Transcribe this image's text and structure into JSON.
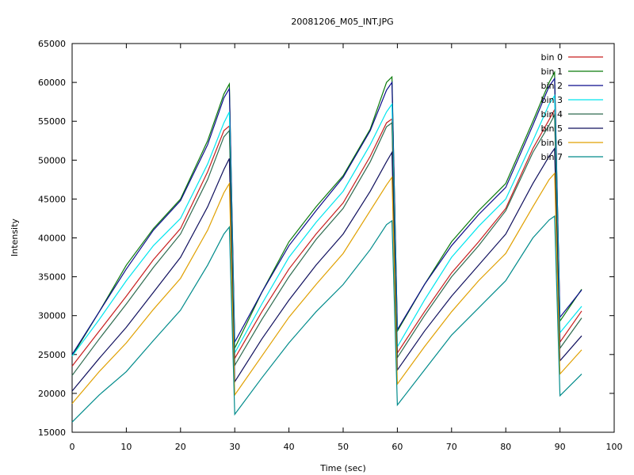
{
  "chart_data": {
    "type": "line",
    "title": "20081206_M05_INT.JPG",
    "xlabel": "Time (sec)",
    "ylabel": "Intensity",
    "xlim": [
      0,
      100
    ],
    "ylim": [
      15000,
      65000
    ],
    "x_ticks": [
      "0",
      "10",
      "20",
      "30",
      "40",
      "50",
      "60",
      "70",
      "80",
      "90",
      "100"
    ],
    "y_ticks": [
      "15000",
      "20000",
      "25000",
      "30000",
      "35000",
      "40000",
      "45000",
      "50000",
      "55000",
      "60000",
      "65000"
    ],
    "grid": false,
    "legend_position": "top-right",
    "series": [
      {
        "name": "bin 0",
        "color": "#c81e1e",
        "x": [
          0,
          5,
          10,
          15,
          20,
          25,
          28,
          29,
          30,
          35,
          40,
          45,
          50,
          55,
          58,
          59,
          60,
          65,
          70,
          75,
          80,
          85,
          88,
          89,
          90,
          94
        ],
        "values": [
          23500,
          28000,
          32500,
          37200,
          41200,
          48500,
          53800,
          54400,
          24500,
          30500,
          36000,
          40500,
          44500,
          50500,
          54800,
          55300,
          25200,
          30500,
          35500,
          39500,
          43800,
          51500,
          55200,
          56500,
          26600,
          30600
        ]
      },
      {
        "name": "bin 1",
        "color": "#0a7a0a",
        "x": [
          0,
          5,
          10,
          15,
          20,
          25,
          28,
          29,
          30,
          35,
          40,
          45,
          50,
          55,
          58,
          59,
          60,
          65,
          70,
          75,
          80,
          85,
          88,
          89,
          90,
          94
        ],
        "values": [
          24800,
          30500,
          36500,
          41200,
          45000,
          52500,
          58500,
          59800,
          25800,
          33000,
          39500,
          44000,
          48000,
          54000,
          60000,
          60700,
          28000,
          34000,
          39500,
          43500,
          47000,
          55000,
          60000,
          61300,
          29300,
          33400
        ]
      },
      {
        "name": "bin 2",
        "color": "#0b0b8c",
        "x": [
          0,
          5,
          10,
          15,
          20,
          25,
          28,
          29,
          30,
          35,
          40,
          45,
          50,
          55,
          58,
          59,
          60,
          65,
          70,
          75,
          80,
          85,
          88,
          89,
          90,
          94
        ],
        "values": [
          25000,
          30500,
          36000,
          41000,
          44800,
          52000,
          58000,
          59200,
          26600,
          33000,
          39000,
          43500,
          47800,
          53800,
          59000,
          60000,
          28200,
          34000,
          39000,
          43000,
          46500,
          54500,
          59500,
          60500,
          29800,
          33300
        ]
      },
      {
        "name": "bin 3",
        "color": "#00e5ee",
        "x": [
          0,
          5,
          10,
          15,
          20,
          25,
          28,
          29,
          30,
          35,
          40,
          45,
          50,
          55,
          58,
          59,
          60,
          65,
          70,
          75,
          80,
          85,
          88,
          89,
          90,
          94
        ],
        "values": [
          24800,
          29500,
          34500,
          39000,
          42500,
          49500,
          54800,
          56200,
          25200,
          31500,
          37500,
          42000,
          46000,
          52000,
          56200,
          57200,
          26000,
          32000,
          37500,
          41500,
          45000,
          52500,
          57200,
          58300,
          27800,
          31200
        ]
      },
      {
        "name": "bin 4",
        "color": "#2e6b4f",
        "x": [
          0,
          5,
          10,
          15,
          20,
          25,
          28,
          29,
          30,
          35,
          40,
          45,
          50,
          55,
          58,
          59,
          60,
          65,
          70,
          75,
          80,
          85,
          88,
          89,
          90,
          94
        ],
        "values": [
          22300,
          27000,
          31500,
          36200,
          40500,
          47500,
          53000,
          53800,
          23600,
          29500,
          35000,
          39800,
          43800,
          49800,
          54300,
          54800,
          24600,
          30000,
          35000,
          39000,
          43500,
          51000,
          54500,
          55800,
          25800,
          29700
        ]
      },
      {
        "name": "bin 5",
        "color": "#10105e",
        "x": [
          0,
          5,
          10,
          15,
          20,
          25,
          28,
          29,
          30,
          35,
          40,
          45,
          50,
          55,
          58,
          59,
          60,
          65,
          70,
          75,
          80,
          85,
          88,
          89,
          90,
          94
        ],
        "values": [
          20300,
          24500,
          28500,
          33000,
          37500,
          44000,
          48800,
          50200,
          21500,
          27000,
          32000,
          36500,
          40500,
          46000,
          49800,
          51000,
          23000,
          28000,
          32500,
          36500,
          40500,
          47000,
          50500,
          51500,
          24200,
          27400
        ]
      },
      {
        "name": "bin 6",
        "color": "#e0a000",
        "x": [
          0,
          5,
          10,
          15,
          20,
          25,
          28,
          29,
          30,
          35,
          40,
          45,
          50,
          55,
          58,
          59,
          60,
          65,
          70,
          75,
          80,
          85,
          88,
          89,
          90,
          94
        ],
        "values": [
          18700,
          22800,
          26500,
          30800,
          34800,
          41000,
          45800,
          47000,
          19800,
          24800,
          29800,
          34000,
          38000,
          43500,
          46800,
          47800,
          21200,
          26000,
          30500,
          34500,
          38000,
          44000,
          47500,
          48300,
          22500,
          25600
        ]
      },
      {
        "name": "bin 7",
        "color": "#008b8b",
        "x": [
          0,
          5,
          10,
          15,
          20,
          25,
          28,
          29,
          30,
          35,
          40,
          45,
          50,
          55,
          58,
          59,
          60,
          65,
          70,
          75,
          80,
          85,
          88,
          89,
          90,
          94
        ],
        "values": [
          16300,
          19800,
          22800,
          26800,
          30700,
          36500,
          40500,
          41400,
          17300,
          22000,
          26500,
          30500,
          34000,
          38500,
          41700,
          42200,
          18500,
          23000,
          27500,
          31000,
          34500,
          40000,
          42300,
          42800,
          19700,
          22500
        ]
      }
    ]
  }
}
